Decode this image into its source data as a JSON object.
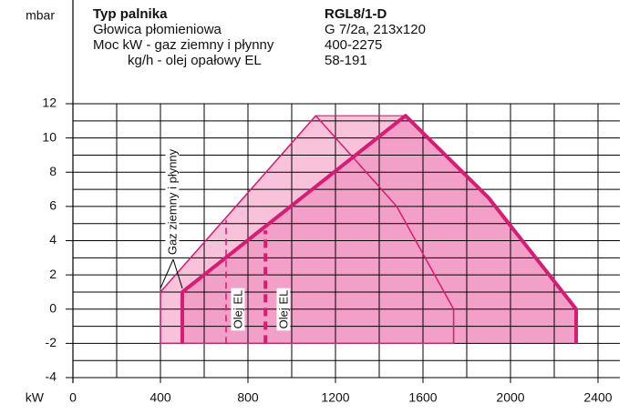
{
  "chart_data": {
    "type": "area",
    "info": [
      [
        "Typ palnika",
        "RGL8/1-D"
      ],
      [
        "Głowica płomieniowa",
        "G 7/2a, 213x120"
      ],
      [
        "Moc kW - gaz ziemny i płynny",
        "400-2275"
      ],
      [
        "kg/h - olej opałowy EL",
        "58-191"
      ]
    ],
    "ylabel": "mbar",
    "xlabel": "kW",
    "xlim": [
      0,
      2400
    ],
    "ylim": [
      -4,
      12
    ],
    "xticks": [
      0,
      400,
      800,
      1200,
      1600,
      2000,
      2400
    ],
    "yticks": [
      -4,
      -2,
      0,
      2,
      4,
      6,
      8,
      10,
      12
    ],
    "xminor": [
      200,
      600,
      1000,
      1400,
      1800,
      2200
    ],
    "yminor": [
      -3,
      -1,
      1,
      3,
      5,
      7,
      9,
      11
    ],
    "grid": true,
    "series": [
      {
        "color": "#d81b73",
        "fill": true,
        "x": [
          400,
          400,
          1110,
          1520,
          1900,
          2300,
          2300
        ],
        "y": [
          -2,
          1,
          11.3,
          11.3,
          6.5,
          0,
          -2
        ]
      },
      {
        "color": "#d81b73",
        "fill": true,
        "thick": true,
        "x": [
          500,
          500,
          1520,
          1900,
          2300,
          2300
        ],
        "y": [
          -2,
          1,
          11.3,
          6.5,
          0,
          -2
        ]
      },
      {
        "color": "#d81b73",
        "fill": false,
        "x": [
          400,
          400,
          1110,
          1480,
          1740,
          1740
        ],
        "y": [
          -2,
          1,
          11.3,
          6,
          0,
          -2
        ]
      },
      {
        "color": "#d81b73",
        "fill": false,
        "dashed": true,
        "x": [
          700,
          700
        ],
        "y": [
          -2,
          5.2
        ]
      },
      {
        "color": "#d81b73",
        "fill": false,
        "dashed": true,
        "thick": true,
        "x": [
          880,
          880
        ],
        "y": [
          -2,
          4.6
        ]
      }
    ],
    "annotations": [
      "Gaz ziemny i płynny",
      "Olej EL",
      "Olej EL"
    ]
  }
}
